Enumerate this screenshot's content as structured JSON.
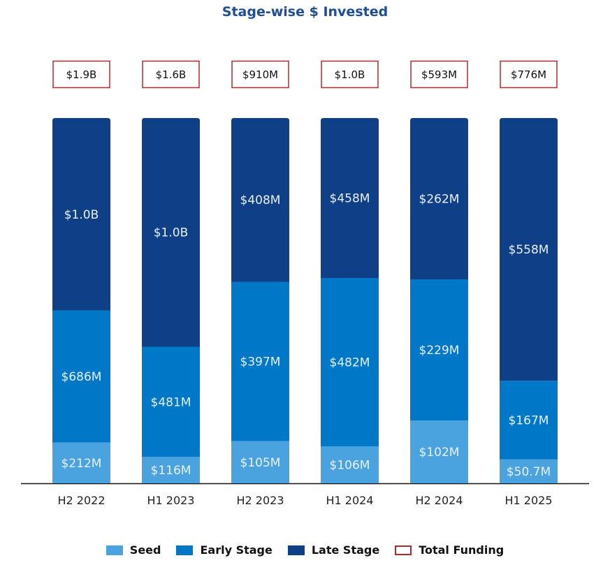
{
  "chart_data": {
    "type": "bar",
    "stacked": true,
    "normalized": true,
    "title": "Stage-wise $ Invested",
    "xlabel": "",
    "ylabel": "",
    "grid": false,
    "legend_position": "bottom",
    "categories": [
      "H2 2022",
      "H1 2023",
      "H2 2023",
      "H1 2024",
      "H2 2024",
      "H1 2025"
    ],
    "series": [
      {
        "name": "Seed",
        "color": "#4aa3df",
        "values_musd": [
          212,
          116,
          105,
          106,
          102,
          50.7
        ],
        "labels": [
          "$212M",
          "$116M",
          "$105M",
          "$106M",
          "$102M",
          "$50.7M"
        ]
      },
      {
        "name": "Early Stage",
        "color": "#0078c8",
        "values_musd": [
          686,
          481,
          397,
          482,
          229,
          167
        ],
        "labels": [
          "$686M",
          "$481M",
          "$397M",
          "$482M",
          "$229M",
          "$167M"
        ]
      },
      {
        "name": "Late Stage",
        "color": "#0f3f87",
        "values_musd": [
          1000,
          1000,
          408,
          458,
          262,
          558
        ],
        "labels": [
          "$1.0B",
          "$1.0B",
          "$408M",
          "$458M",
          "$262M",
          "$558M"
        ]
      }
    ],
    "totals": {
      "name": "Total Funding",
      "border_color": "#b22b2b",
      "labels": [
        "$1.9B",
        "$1.6B",
        "$910M",
        "$1.0B",
        "$593M",
        "$776M"
      ]
    }
  }
}
